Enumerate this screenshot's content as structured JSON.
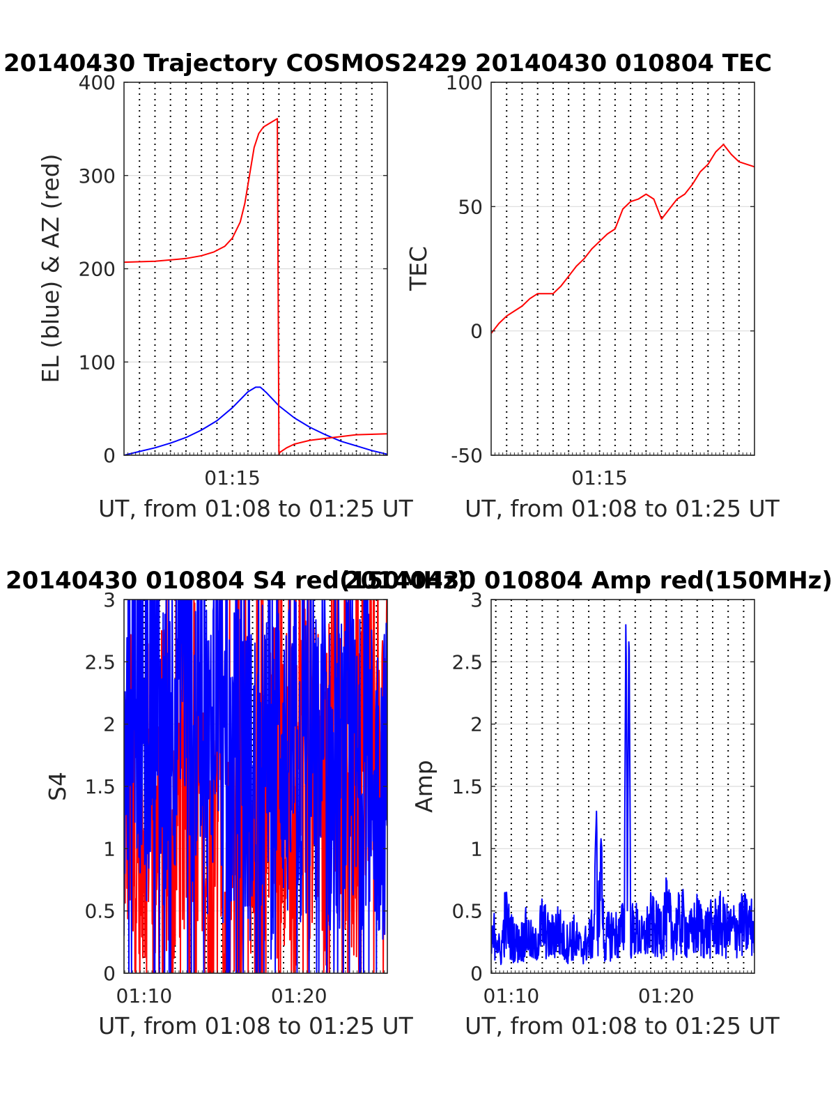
{
  "colors": {
    "el": "#0000ff",
    "az": "#ff0000",
    "tec": "#ff0000",
    "s4_red": "#ff0000",
    "s4_blue": "#0000ff",
    "amp": "#0000ff",
    "grid": "#dcdcdc",
    "axis": "#262626"
  },
  "chart_data": [
    {
      "type": "line",
      "title": "20140430 Trajectory COSMOS2429",
      "xlabel": "UT, from 01:08 to 01:25 UT",
      "ylabel": "EL (blue) & AZ (red)",
      "xlim": [
        8.0,
        25.0
      ],
      "ylim": [
        0,
        400
      ],
      "xticks": [
        {
          "v": 15,
          "label": "01:15"
        }
      ],
      "yticks": [
        {
          "v": 0,
          "label": "0"
        },
        {
          "v": 100,
          "label": "100"
        },
        {
          "v": 200,
          "label": "200"
        },
        {
          "v": 300,
          "label": "300"
        },
        {
          "v": 400,
          "label": "400"
        }
      ],
      "grid": true,
      "series": [
        {
          "color_key": "el",
          "x": [
            8.0,
            9.0,
            10.0,
            11.0,
            12.0,
            13.0,
            14.0,
            15.0,
            16.0,
            16.5,
            16.8,
            17.2,
            18.0,
            19.0,
            20.0,
            21.0,
            22.0,
            23.0,
            24.0,
            25.0
          ],
          "y": [
            0,
            4,
            8,
            13,
            19,
            27,
            37,
            51,
            68,
            73,
            73,
            67,
            53,
            40,
            30,
            22,
            15,
            10,
            5,
            1
          ]
        },
        {
          "color_key": "az",
          "x": [
            8.0,
            10.0,
            12.0,
            13.0,
            13.8,
            14.5,
            15.0,
            15.5,
            15.8,
            16.1,
            16.4,
            16.7,
            17.0,
            17.5,
            17.9,
            18.0,
            18.05,
            18.5,
            19.0,
            20.0,
            21.0,
            22.0,
            23.0,
            25.0
          ],
          "y": [
            207,
            208,
            211,
            214,
            218,
            224,
            233,
            250,
            270,
            300,
            330,
            345,
            352,
            357,
            361,
            0,
            3,
            8,
            12,
            16,
            18,
            20,
            22,
            23
          ]
        }
      ]
    },
    {
      "type": "line",
      "title": "20140430 010804 TEC",
      "xlabel": "UT, from 01:08 to 01:25 UT",
      "ylabel": "TEC",
      "xlim": [
        8.0,
        25.0
      ],
      "ylim": [
        -50,
        100
      ],
      "xticks": [
        {
          "v": 15,
          "label": "01:15"
        }
      ],
      "yticks": [
        {
          "v": -50,
          "label": "-50"
        },
        {
          "v": 0,
          "label": "0"
        },
        {
          "v": 50,
          "label": "50"
        },
        {
          "v": 100,
          "label": "100"
        }
      ],
      "grid": true,
      "series": [
        {
          "color_key": "tec",
          "x": [
            8.0,
            8.5,
            9.0,
            9.5,
            10.0,
            10.5,
            11.0,
            11.5,
            12.0,
            12.5,
            13.0,
            13.5,
            14.0,
            14.5,
            15.0,
            15.5,
            16.0,
            16.5,
            17.0,
            17.5,
            18.0,
            18.5,
            19.0,
            19.5,
            20.0,
            20.5,
            21.0,
            21.5,
            22.0,
            22.5,
            23.0,
            23.5,
            24.0,
            24.5,
            25.0
          ],
          "y": [
            -1,
            3,
            6,
            8,
            10,
            13,
            15,
            15,
            15,
            18,
            22,
            26,
            29,
            33,
            36,
            39,
            41,
            49,
            52,
            53,
            55,
            53,
            45,
            49,
            53,
            55,
            59,
            64,
            67,
            72,
            75,
            71,
            68,
            67,
            66
          ]
        }
      ]
    },
    {
      "type": "line",
      "title": "20140430 010804 S4 red(150MHz)",
      "xlabel": "UT, from 01:08 to 01:25 UT",
      "ylabel": "S4",
      "xlim": [
        8.7,
        25.7
      ],
      "ylim": [
        0,
        3
      ],
      "xticks": [
        {
          "v": 10,
          "label": "01:10"
        },
        {
          "v": 20,
          "label": "01:20"
        }
      ],
      "yticks": [
        {
          "v": 0,
          "label": "0"
        },
        {
          "v": 0.5,
          "label": "0.5"
        },
        {
          "v": 1,
          "label": "1"
        },
        {
          "v": 1.5,
          "label": "1.5"
        },
        {
          "v": 2,
          "label": "2"
        },
        {
          "v": 2.5,
          "label": "2.5"
        },
        {
          "v": 3,
          "label": "3"
        }
      ],
      "grid": true,
      "series": [
        {
          "color_key": "s4_red",
          "x": [
            8.7,
            9.2,
            9.7,
            10.2,
            10.7,
            11.2,
            11.7,
            12.2,
            12.7,
            13.2,
            13.7,
            14.2,
            14.7,
            15.2,
            15.7,
            16.2,
            16.7,
            17.2,
            17.7,
            18.2,
            18.7,
            19.2,
            19.7,
            20.2,
            20.7,
            21.2,
            21.7,
            22.2,
            22.7,
            23.2,
            23.7,
            24.2,
            24.7,
            25.2,
            25.7
          ],
          "y": [
            1.4,
            1.5,
            0.9,
            1.6,
            1.2,
            1.7,
            0.8,
            1.5,
            1.3,
            1.9,
            1.4,
            0.6,
            2.2,
            0.3,
            1.1,
            0.2,
            1.8,
            0.7,
            1.3,
            2.0,
            0.9,
            1.6,
            1.1,
            2.1,
            1.4,
            1.8,
            1.2,
            2.3,
            1.5,
            1.7,
            1.0,
            1.9,
            2.4,
            1.3,
            2.2
          ]
        },
        {
          "color_key": "s4_blue",
          "x": [
            8.7,
            9.2,
            9.7,
            10.2,
            10.7,
            11.2,
            11.7,
            12.2,
            12.7,
            13.2,
            13.7,
            14.2,
            14.7,
            15.2,
            15.7,
            16.2,
            16.7,
            17.2,
            17.7,
            18.2,
            18.7,
            19.2,
            19.7,
            20.2,
            20.7,
            21.2,
            21.7,
            22.2,
            22.7,
            23.2,
            23.7,
            24.2,
            24.7,
            25.2,
            25.7
          ],
          "y": [
            1.4,
            2.6,
            2.1,
            1.8,
            2.7,
            1.7,
            2.3,
            2.0,
            2.5,
            1.9,
            2.4,
            1.6,
            2.8,
            1.3,
            1.7,
            1.9,
            1.5,
            1.6,
            1.8,
            1.4,
            2.1,
            1.6,
            1.8,
            1.5,
            1.9,
            1.6,
            1.7,
            1.4,
            1.6,
            1.8,
            1.5,
            1.7,
            1.6,
            1.5,
            1.6
          ]
        }
      ]
    },
    {
      "type": "line",
      "title": "20140430 010804 Amp red(150MHz)",
      "xlabel": "UT, from 01:08 to 01:25 UT",
      "ylabel": "Amp",
      "xlim": [
        8.7,
        25.7
      ],
      "ylim": [
        0,
        3
      ],
      "xticks": [
        {
          "v": 10,
          "label": "01:10"
        },
        {
          "v": 20,
          "label": "01:20"
        }
      ],
      "yticks": [
        {
          "v": 0,
          "label": "0"
        },
        {
          "v": 0.5,
          "label": "0.5"
        },
        {
          "v": 1,
          "label": "1"
        },
        {
          "v": 1.5,
          "label": "1.5"
        },
        {
          "v": 2,
          "label": "2"
        },
        {
          "v": 2.5,
          "label": "2.5"
        },
        {
          "v": 3,
          "label": "3"
        }
      ],
      "grid": true,
      "series": [
        {
          "color_key": "amp",
          "x": [
            8.7,
            9.0,
            9.3,
            9.6,
            10.0,
            10.5,
            11.0,
            11.5,
            12.0,
            12.5,
            13.0,
            13.5,
            14.0,
            14.5,
            15.0,
            15.3,
            15.5,
            15.6,
            15.8,
            16.0,
            16.5,
            17.0,
            17.3,
            17.4,
            17.5,
            17.6,
            17.7,
            18.0,
            18.5,
            19.0,
            19.5,
            20.0,
            20.5,
            21.0,
            21.5,
            22.0,
            22.5,
            23.0,
            23.5,
            24.0,
            24.5,
            25.0,
            25.7
          ],
          "y": [
            0.3,
            0.55,
            0.2,
            0.67,
            0.45,
            0.35,
            0.5,
            0.3,
            0.6,
            0.4,
            0.55,
            0.35,
            0.45,
            0.3,
            0.4,
            0.5,
            1.3,
            0.6,
            1.1,
            0.4,
            0.5,
            0.45,
            0.6,
            2.93,
            0.8,
            2.9,
            0.5,
            0.55,
            0.4,
            0.6,
            0.5,
            0.7,
            0.5,
            0.65,
            0.45,
            0.6,
            0.5,
            0.55,
            0.6,
            0.5,
            0.55,
            0.6,
            0.55
          ]
        }
      ]
    }
  ]
}
